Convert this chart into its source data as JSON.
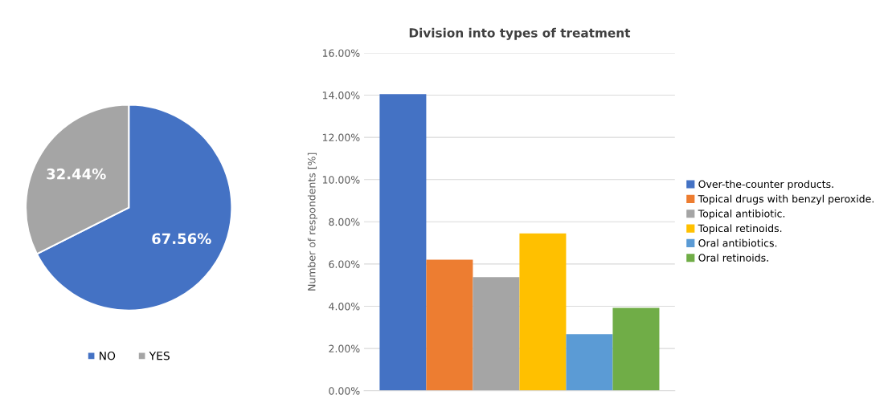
{
  "chart_data": [
    {
      "type": "pie",
      "categories": [
        "NO",
        "YES"
      ],
      "values": [
        67.56,
        32.44
      ],
      "colors": [
        "#4472c4",
        "#a5a5a5"
      ],
      "value_labels": [
        "67.56%",
        "32.44%"
      ],
      "legend": "bottom"
    },
    {
      "type": "bar",
      "title": "Division into types of treatment",
      "ylabel": "Number of respondents [%]",
      "categories": [
        null
      ],
      "series": [
        {
          "name": "Over-the-counter products.",
          "color": "#4472c4",
          "values": [
            14.05
          ]
        },
        {
          "name": "Topical drugs with benzyl peroxide.",
          "color": "#ed7d31",
          "values": [
            6.21
          ]
        },
        {
          "name": "Topical antibiotic.",
          "color": "#a5a5a5",
          "values": [
            5.38
          ]
        },
        {
          "name": "Topical retinoids.",
          "color": "#ffc000",
          "values": [
            7.45
          ]
        },
        {
          "name": "Oral antibiotics.",
          "color": "#5b9bd5",
          "values": [
            2.68
          ]
        },
        {
          "name": "Oral retinoids.",
          "color": "#70ad47",
          "values": [
            3.92
          ]
        }
      ],
      "ylim": [
        0,
        16
      ],
      "yticks": [
        {
          "value": 0,
          "label": "0.00%"
        },
        {
          "value": 2,
          "label": "2.00%"
        },
        {
          "value": 4,
          "label": "4.00%"
        },
        {
          "value": 6,
          "label": "6.00%"
        },
        {
          "value": 8,
          "label": "8.00%"
        },
        {
          "value": 10,
          "label": "10.00%"
        },
        {
          "value": 12,
          "label": "12.00%"
        },
        {
          "value": 14,
          "label": "14.00%"
        },
        {
          "value": 16,
          "label": "16.00%"
        }
      ],
      "grid": "y",
      "legend": "right"
    }
  ]
}
